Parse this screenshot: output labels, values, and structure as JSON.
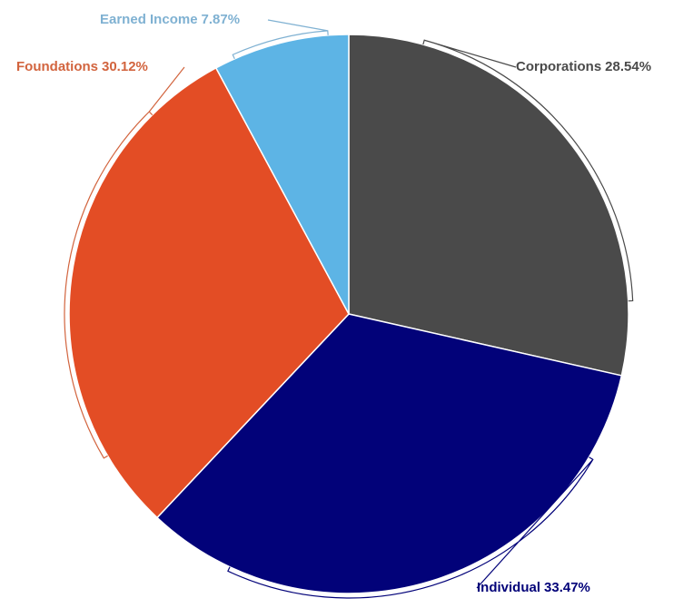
{
  "chart_data": {
    "type": "pie",
    "categories": [
      "Corporations",
      "Individual",
      "Foundations",
      "Earned Income"
    ],
    "values": [
      28.54,
      33.47,
      30.12,
      7.87
    ],
    "value_labels": [
      "28.54%",
      "33.47%",
      "30.12%",
      "7.87%"
    ],
    "colors": [
      "#4a4a4a",
      "#020279",
      "#e34d25",
      "#5db4e5"
    ],
    "label_colors": [
      "#4a4a4a",
      "#020279",
      "#d2643e",
      "#7fb1d2"
    ]
  }
}
